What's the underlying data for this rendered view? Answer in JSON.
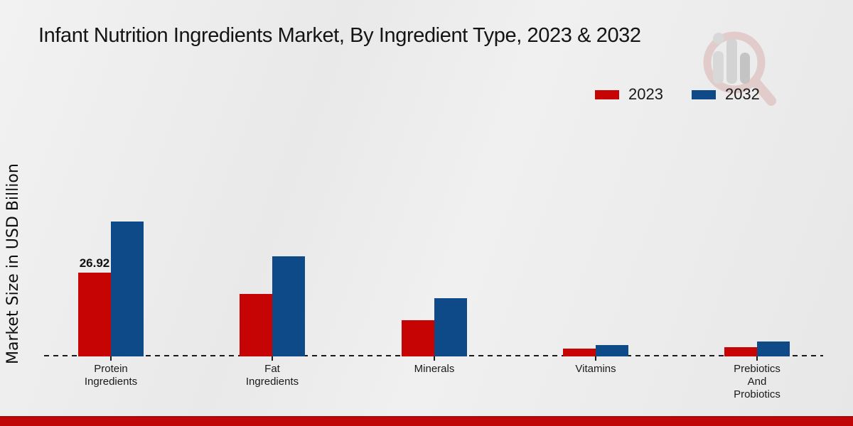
{
  "title": "Infant Nutrition Ingredients Market, By Ingredient Type, 2023 & 2032",
  "ylabel": "Market Size in USD Billion",
  "legend": [
    {
      "label": "2023",
      "color": "#c70404"
    },
    {
      "label": "2032",
      "color": "#0d4a87"
    }
  ],
  "colors": {
    "series_2023": "#c70404",
    "series_2032": "#0d4a87",
    "footer_band": "#c00606",
    "baseline": "#1a1a1a",
    "background": "#ededed"
  },
  "watermark_icon": "magnifier-bar-chart-logo",
  "chart_data": {
    "type": "bar",
    "title": "Infant Nutrition Ingredients Market, By Ingredient Type, 2023 & 2032",
    "xlabel": "",
    "ylabel": "Market Size in USD Billion",
    "categories": [
      "Protein\nIngredients",
      "Fat\nIngredients",
      "Minerals",
      "Vitamins",
      "Prebiotics\nAnd\nProbiotics"
    ],
    "series": [
      {
        "name": "2023",
        "color": "#c70404",
        "values": [
          26.92,
          20.1,
          11.6,
          2.5,
          3.0
        ]
      },
      {
        "name": "2032",
        "color": "#0d4a87",
        "values": [
          43.3,
          32.2,
          18.7,
          3.7,
          4.8
        ]
      }
    ],
    "ylim": [
      0,
      45
    ],
    "grid": false,
    "axis_style": "dashed-zero-baseline-only",
    "legend_position": "top-right",
    "data_labels": [
      {
        "series": "2023",
        "category_index": 0,
        "text": "26.92"
      }
    ]
  }
}
